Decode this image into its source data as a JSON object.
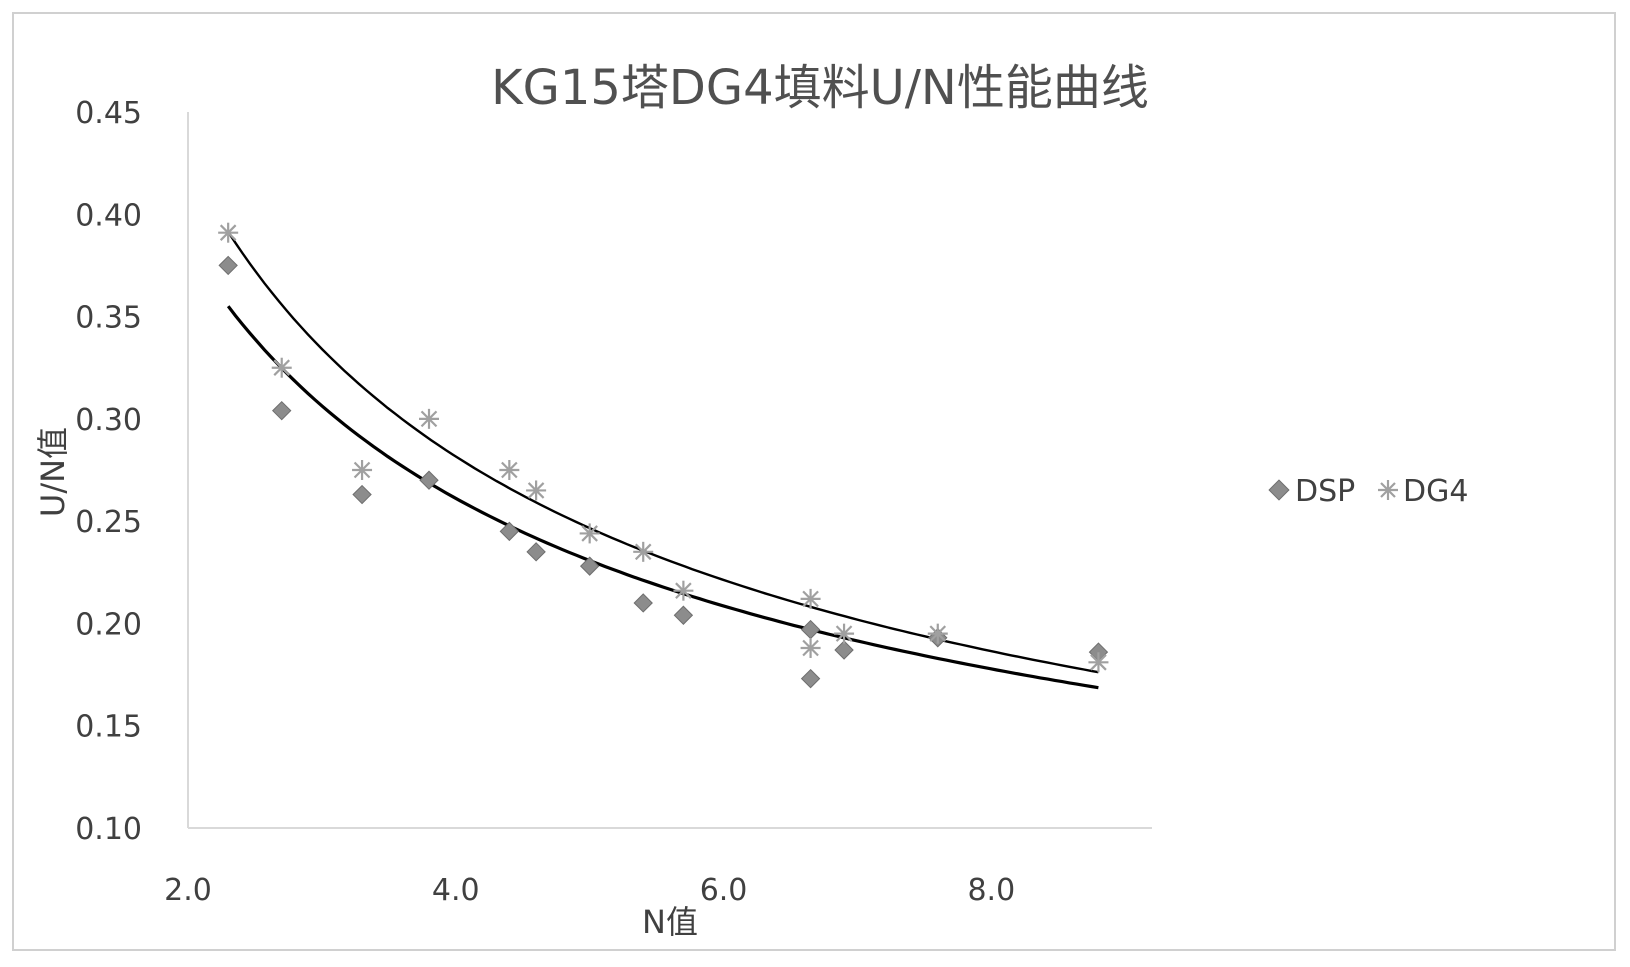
{
  "chart_data": {
    "type": "scatter",
    "title": "KG15塔DG4填料U/N性能曲线",
    "xlabel": "N值",
    "ylabel": "U/N值",
    "xlim": [
      2.0,
      9.2
    ],
    "ylim": [
      0.1,
      0.45
    ],
    "x_ticks": [
      "2.0",
      "4.0",
      "6.0",
      "8.0"
    ],
    "x_tick_values": [
      2.0,
      4.0,
      6.0,
      8.0
    ],
    "y_ticks": [
      "0.10",
      "0.15",
      "0.20",
      "0.25",
      "0.30",
      "0.35",
      "0.40",
      "0.45"
    ],
    "y_tick_values": [
      0.1,
      0.15,
      0.2,
      0.25,
      0.3,
      0.35,
      0.4,
      0.45
    ],
    "grid": false,
    "legend_position": "right",
    "series": [
      {
        "name": "DSP",
        "marker": "diamond",
        "color": "#8c8c8c",
        "points": [
          [
            2.3,
            0.375
          ],
          [
            2.7,
            0.304
          ],
          [
            3.3,
            0.263
          ],
          [
            3.8,
            0.27
          ],
          [
            4.4,
            0.245
          ],
          [
            4.6,
            0.235
          ],
          [
            5.0,
            0.228
          ],
          [
            5.4,
            0.21
          ],
          [
            5.7,
            0.204
          ],
          [
            6.65,
            0.197
          ],
          [
            6.65,
            0.173
          ],
          [
            6.9,
            0.187
          ],
          [
            7.6,
            0.193
          ],
          [
            8.8,
            0.186
          ]
        ],
        "trendline": {
          "model": "power",
          "a": 0.5637,
          "b": -0.555,
          "from": 2.3,
          "to": 8.8,
          "color": "#000000"
        }
      },
      {
        "name": "DG4",
        "marker": "asterisk",
        "color": "#a0a0a0",
        "points": [
          [
            2.3,
            0.391
          ],
          [
            2.7,
            0.325
          ],
          [
            3.3,
            0.275
          ],
          [
            3.8,
            0.3
          ],
          [
            4.4,
            0.275
          ],
          [
            4.6,
            0.265
          ],
          [
            5.0,
            0.244
          ],
          [
            5.4,
            0.235
          ],
          [
            5.7,
            0.216
          ],
          [
            6.65,
            0.212
          ],
          [
            6.65,
            0.188
          ],
          [
            6.9,
            0.195
          ],
          [
            7.6,
            0.195
          ],
          [
            8.8,
            0.181
          ]
        ],
        "trendline": {
          "model": "power",
          "a": 0.6425,
          "b": -0.595,
          "from": 2.3,
          "to": 8.8,
          "color": "#000000"
        }
      }
    ]
  }
}
